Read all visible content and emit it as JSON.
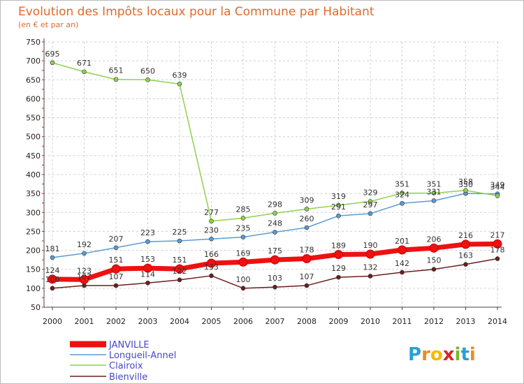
{
  "chart_data": {
    "type": "line",
    "title": "Evolution des Impôts locaux pour la Commune par Habitant",
    "subtitle": "(en € et par an)",
    "x": [
      2000,
      2001,
      2002,
      2003,
      2004,
      2005,
      2006,
      2007,
      2008,
      2009,
      2010,
      2011,
      2012,
      2013,
      2014
    ],
    "ylim": [
      50,
      750
    ],
    "yticks": [
      50,
      100,
      150,
      200,
      250,
      300,
      350,
      400,
      450,
      500,
      550,
      600,
      650,
      700,
      750
    ],
    "grid": true,
    "legend_position": "bottom-left",
    "series": [
      {
        "name": "Bienville",
        "color": "#6b1e1e",
        "values": [
          100,
          107,
          107,
          114,
          122,
          133,
          100,
          103,
          107,
          129,
          132,
          142,
          150,
          163,
          178
        ]
      },
      {
        "name": "Longueil-Annel",
        "color": "#5b9bd5",
        "values": [
          181,
          192,
          207,
          223,
          225,
          230,
          235,
          248,
          260,
          291,
          297,
          324,
          331,
          350,
          349
        ]
      },
      {
        "name": "Clairoix",
        "color": "#8fd14f",
        "values": [
          695,
          671,
          651,
          650,
          639,
          277,
          285,
          298,
          309,
          319,
          329,
          351,
          351,
          358,
          344
        ]
      },
      {
        "name": "JANVILLE",
        "color": "#ee1111",
        "values": [
          124,
          123,
          151,
          153,
          151,
          166,
          169,
          175,
          178,
          189,
          190,
          201,
          206,
          216,
          217
        ]
      }
    ],
    "legend_order": [
      "JANVILLE",
      "Longueil-Annel",
      "Clairoix",
      "Bienville"
    ]
  },
  "brand": {
    "letters": [
      "P",
      "r",
      "o",
      "x",
      "i",
      "t",
      "i"
    ],
    "colors": [
      "#2a9fd8",
      "#f28a1c",
      "#f6b800",
      "#d8232a",
      "#7ab829",
      "#2a9fd8",
      "#f28a1c"
    ]
  }
}
